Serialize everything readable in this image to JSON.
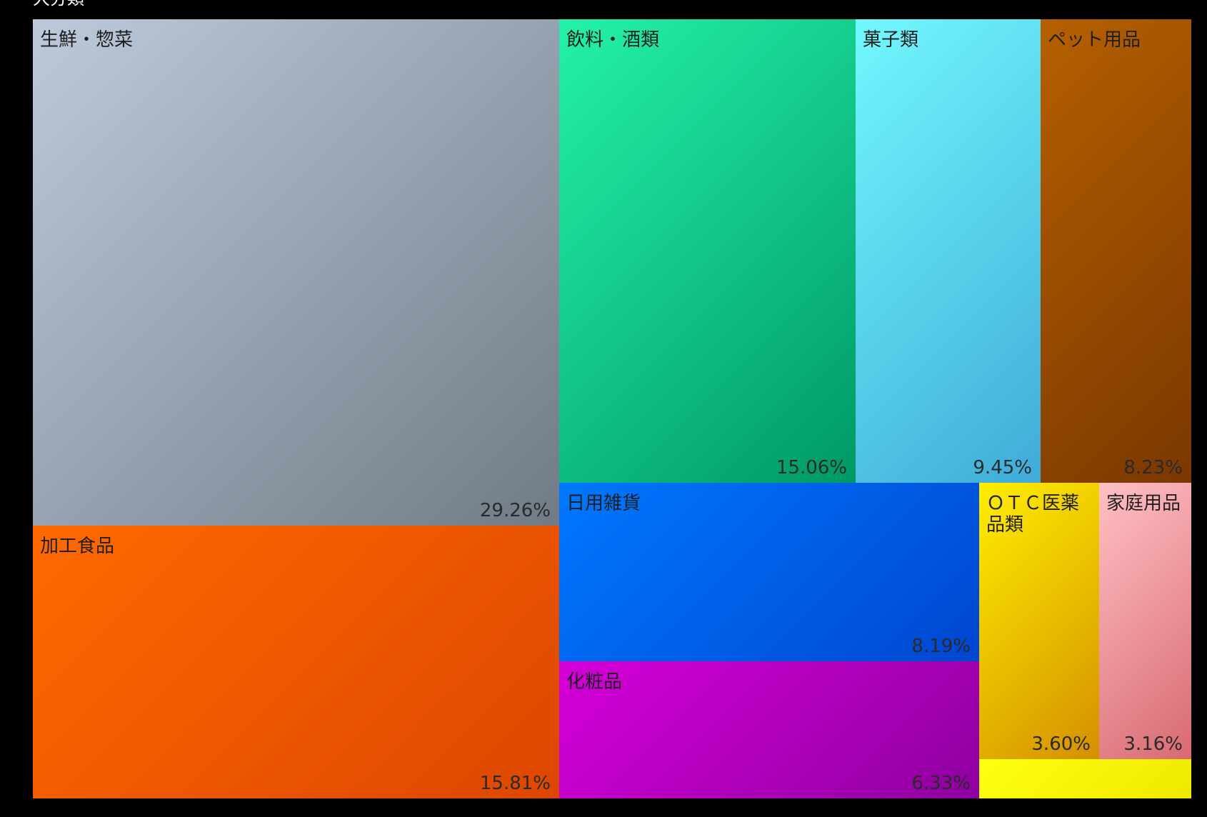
{
  "chart_data": {
    "type": "treemap",
    "title": "大分類",
    "unit": "%",
    "items": [
      {
        "name": "生鮮・惣菜",
        "value": 29.26,
        "label": "29.26%",
        "color_start": "#bccadb",
        "color_end": "#707b85"
      },
      {
        "name": "加工食品",
        "value": 15.81,
        "label": "15.81%",
        "color_start": "#ff6a00",
        "color_end": "#dc4600"
      },
      {
        "name": "飲料・酒類",
        "value": 15.06,
        "label": "15.06%",
        "color_start": "#24f2a8",
        "color_end": "#009866"
      },
      {
        "name": "菓子類",
        "value": 9.45,
        "label": "9.45%",
        "color_start": "#72f8fe",
        "color_end": "#3fabd8"
      },
      {
        "name": "ペット用品",
        "value": 8.23,
        "label": "8.23%",
        "color_start": "#b66000",
        "color_end": "#7a3700"
      },
      {
        "name": "日用雑貨",
        "value": 8.19,
        "label": "8.19%",
        "color_start": "#0078ff",
        "color_end": "#0046d0"
      },
      {
        "name": "化粧品",
        "value": 6.33,
        "label": "6.33%",
        "color_start": "#d500d9",
        "color_end": "#8e00a0"
      },
      {
        "name": "ＯＴＣ医薬品類",
        "value": 3.6,
        "label": "3.60%",
        "color_start": "#ffee00",
        "color_end": "#d49000"
      },
      {
        "name": "家庭用品",
        "value": 3.16,
        "label": "3.16%",
        "color_start": "#ffc0c4",
        "color_end": "#d86a72"
      },
      {
        "name": "",
        "value": 1.0,
        "label": "",
        "color_start": "#ffff10",
        "color_end": "#f0e800"
      }
    ]
  }
}
